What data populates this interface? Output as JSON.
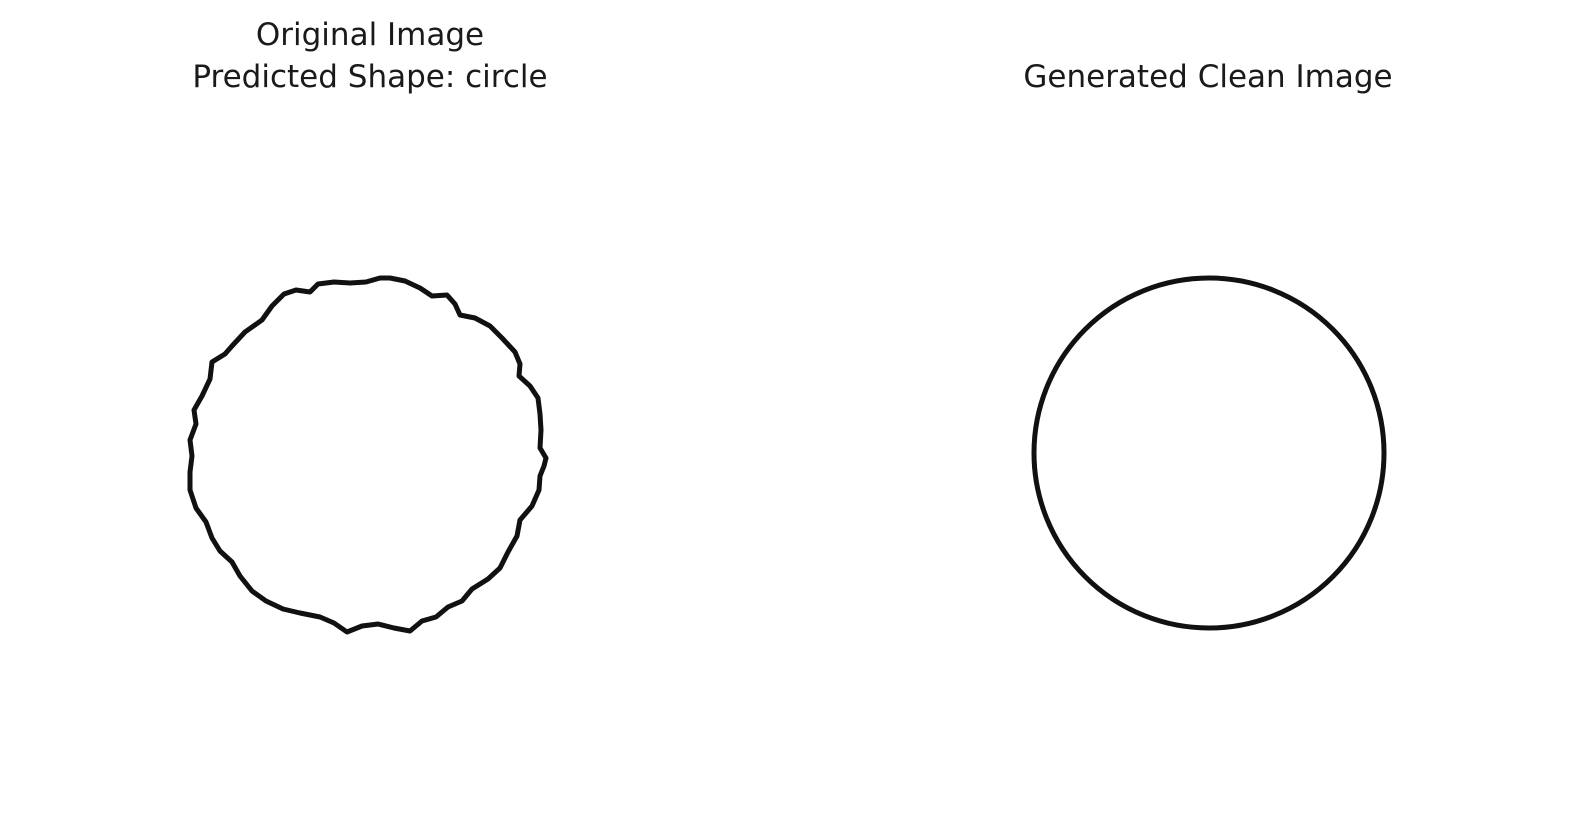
{
  "figure": {
    "left_panel": {
      "title_line1": "Original Image",
      "title_line2": "Predicted Shape: circle",
      "image": "noisy-circle-drawing"
    },
    "right_panel": {
      "title": "Generated Clean Image",
      "image": "clean-circle-drawing"
    },
    "colors": {
      "background": "#ffffff",
      "stroke": "#111111",
      "text": "#1a1a1a"
    }
  }
}
